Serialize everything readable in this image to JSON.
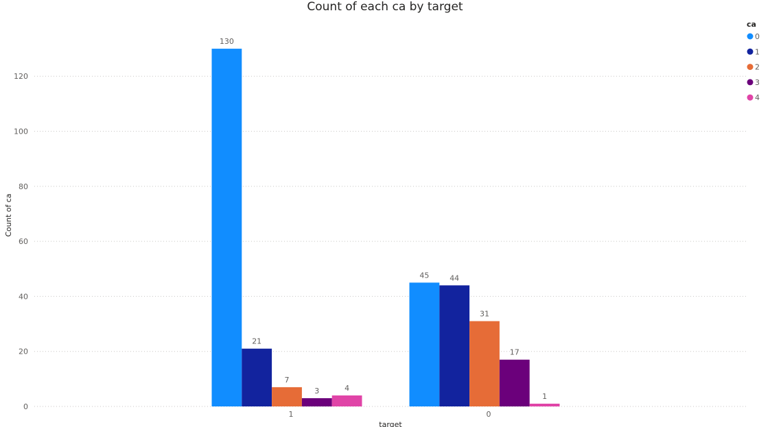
{
  "chart_data": {
    "type": "bar",
    "title": "Count of each ca by target",
    "xlabel": "target",
    "ylabel": "Count of ca",
    "categories": [
      "1",
      "0"
    ],
    "series": [
      {
        "name": "0",
        "color": "#118DFF",
        "values": [
          130,
          45
        ]
      },
      {
        "name": "1",
        "color": "#12239E",
        "values": [
          21,
          44
        ]
      },
      {
        "name": "2",
        "color": "#E66C37",
        "values": [
          7,
          31
        ]
      },
      {
        "name": "3",
        "color": "#6B007B",
        "values": [
          3,
          17
        ]
      },
      {
        "name": "4",
        "color": "#E044A7",
        "values": [
          4,
          1
        ]
      }
    ],
    "ylim": [
      0,
      135
    ],
    "yticks": [
      0,
      20,
      40,
      60,
      80,
      100,
      120
    ],
    "grid": true,
    "legend": {
      "title": "ca",
      "position": "top-right"
    },
    "data_labels": true
  }
}
